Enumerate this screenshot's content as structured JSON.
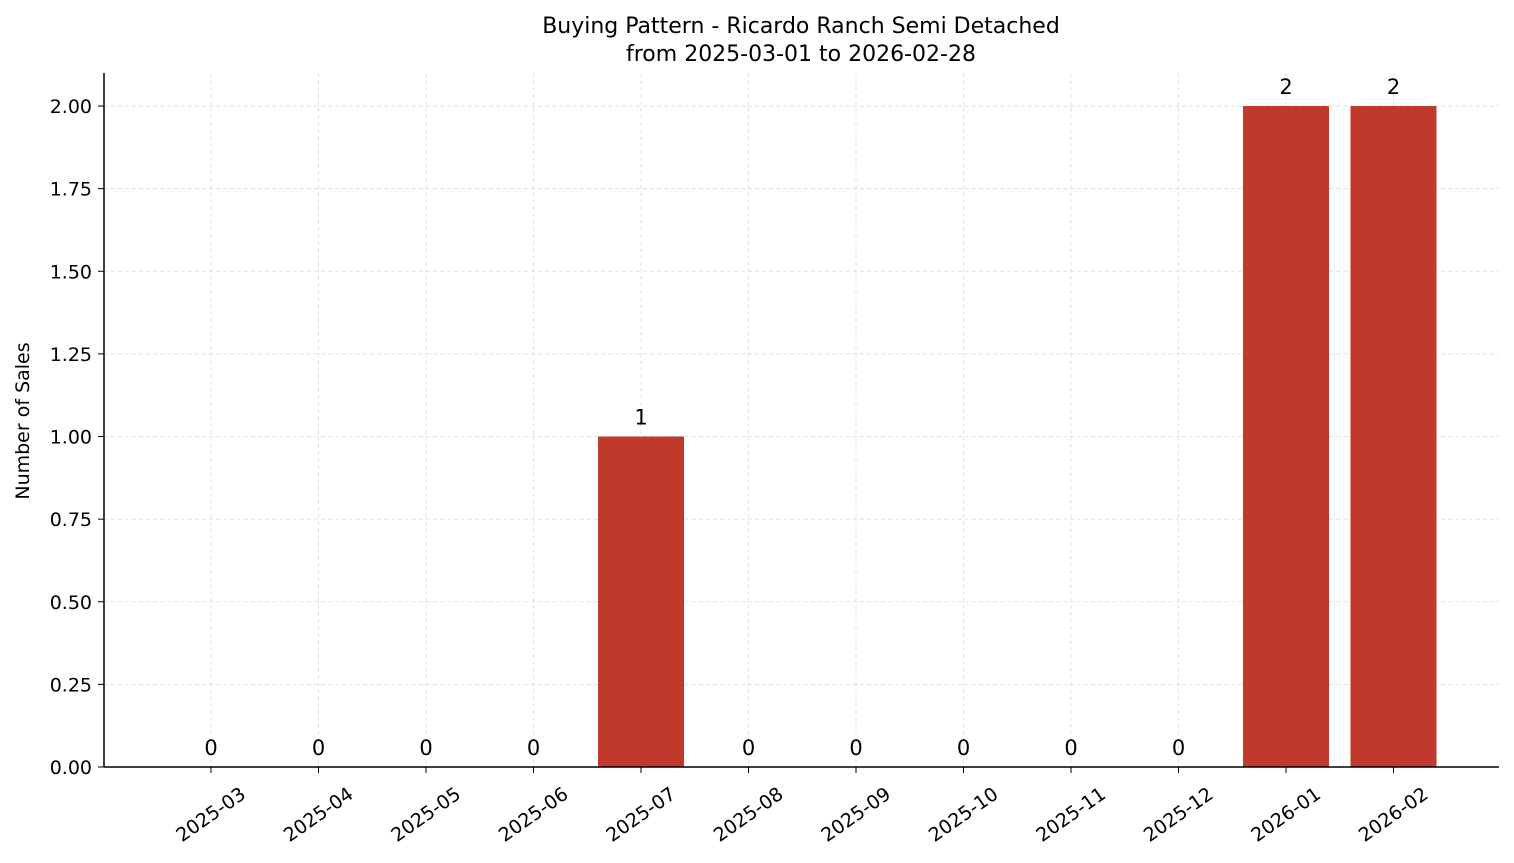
{
  "chart_data": {
    "type": "bar",
    "title": "Buying Pattern - Ricardo Ranch Semi Detached",
    "subtitle": "from 2025-03-01 to 2026-02-28",
    "xlabel": "",
    "ylabel": "Number of Sales",
    "categories": [
      "2025-03",
      "2025-04",
      "2025-05",
      "2025-06",
      "2025-07",
      "2025-08",
      "2025-09",
      "2025-10",
      "2025-11",
      "2025-12",
      "2026-01",
      "2026-02"
    ],
    "values": [
      0,
      0,
      0,
      0,
      1,
      0,
      0,
      0,
      0,
      0,
      2,
      2
    ],
    "data_labels": [
      "0",
      "0",
      "0",
      "0",
      "1",
      "0",
      "0",
      "0",
      "0",
      "0",
      "2",
      "2"
    ],
    "ylim": [
      0,
      2.1
    ],
    "yticks": [
      "0.00",
      "0.25",
      "0.50",
      "0.75",
      "1.00",
      "1.25",
      "1.50",
      "1.75",
      "2.00"
    ],
    "grid": true,
    "bar_color": "#c0392b",
    "grid_color": "#d9d9d9"
  }
}
